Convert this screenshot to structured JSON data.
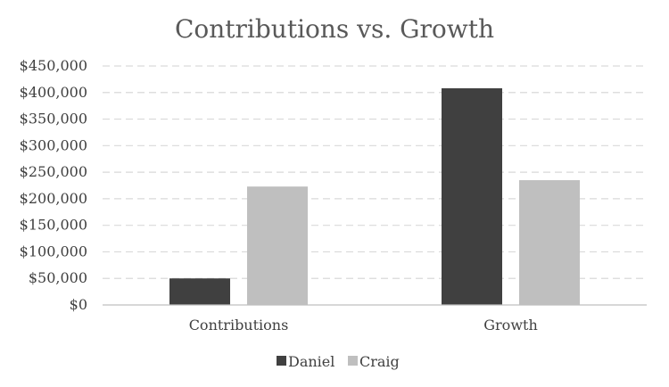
{
  "chart_data": {
    "type": "bar",
    "title": "Contributions vs. Growth",
    "categories": [
      "Contributions",
      "Growth"
    ],
    "series": [
      {
        "name": "Daniel",
        "values": [
          50000,
          408000
        ],
        "color": "#404040"
      },
      {
        "name": "Craig",
        "values": [
          223000,
          235000
        ],
        "color": "#bfbfbf"
      }
    ],
    "ylim": [
      0,
      450000
    ],
    "yticks": [
      0,
      50000,
      100000,
      150000,
      200000,
      250000,
      300000,
      350000,
      400000,
      450000
    ],
    "ytick_labels": [
      "$0",
      "$50,000",
      "$100,000",
      "$150,000",
      "$200,000",
      "$250,000",
      "$300,000",
      "$350,000",
      "$400,000",
      "$450,000"
    ],
    "grid": true,
    "legend_position": "bottom"
  }
}
